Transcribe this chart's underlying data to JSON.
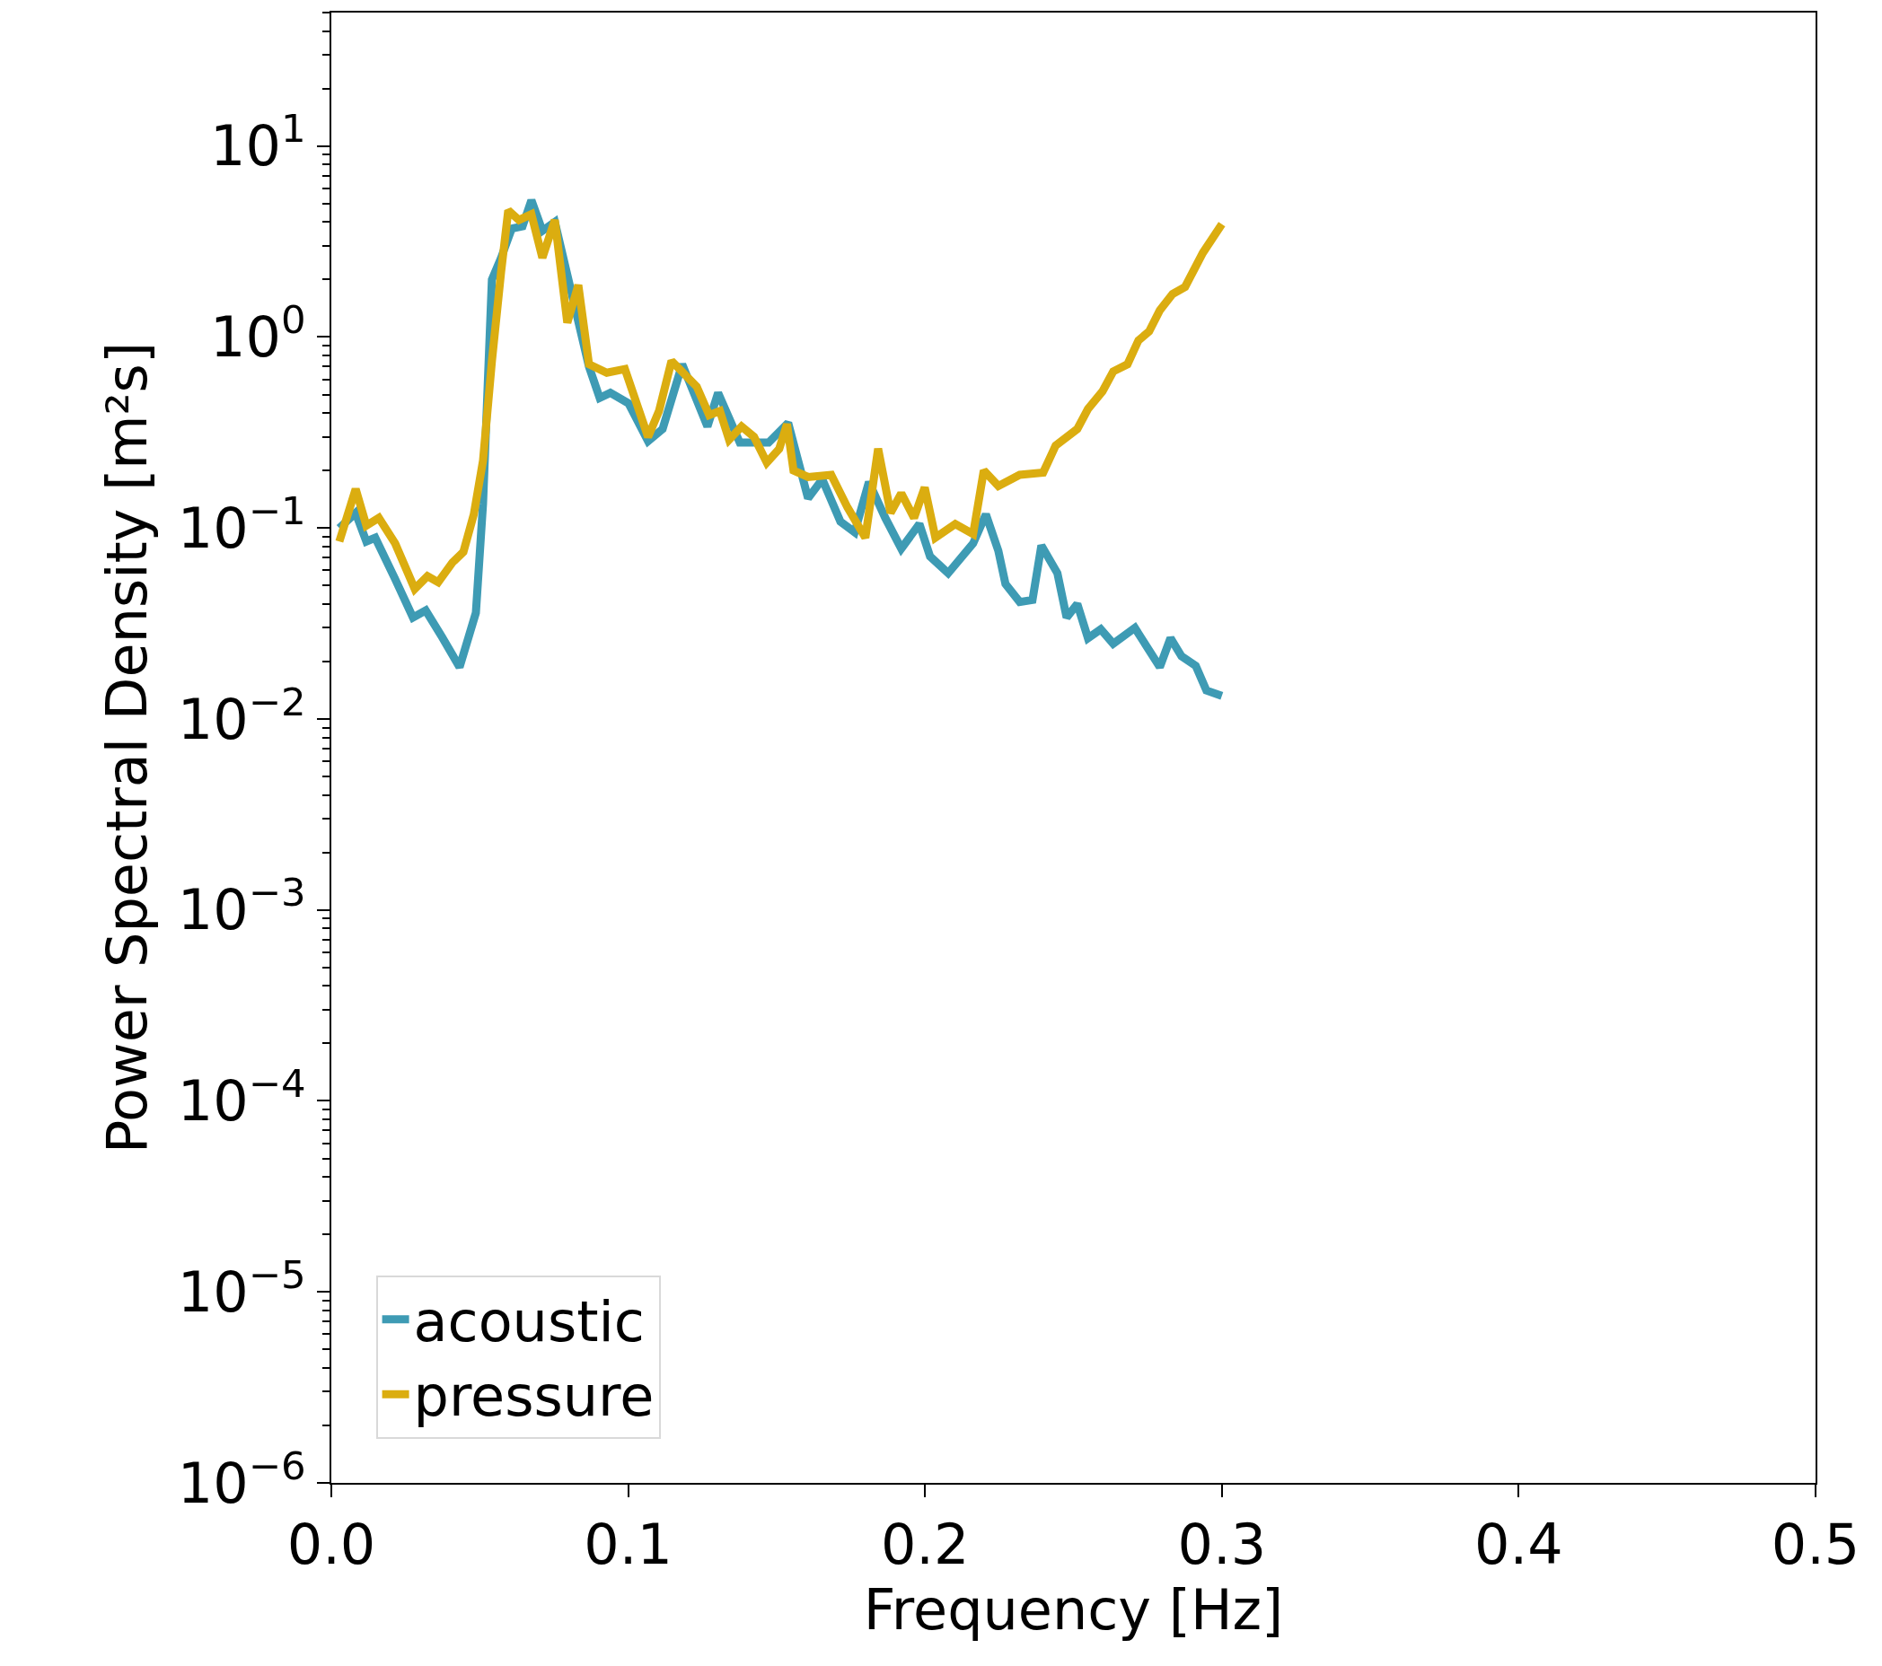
{
  "chart_data": {
    "type": "line",
    "xlabel": "Frequency [Hz]",
    "ylabel": "Power Spectral Density [m²s]",
    "log": "y",
    "legend": "bottom left",
    "line_style": "solid",
    "marker": "none",
    "xlim": [
      0,
      0.5
    ],
    "xticks": [
      {
        "value": 0,
        "label": "0.0"
      },
      0.1,
      0.2,
      0.3,
      0.4,
      0.5
    ],
    "ylim": [
      1e-06,
      50
    ],
    "yticks": [
      {
        "value": 1e-06,
        "label": "10$^{−6}$"
      },
      {
        "value": 1e-05,
        "label": "10$^{−5}$"
      },
      {
        "value": 0.0001,
        "label": "10$^{−4}$"
      },
      {
        "value": 0.001,
        "label": "10$^{−3}$"
      },
      {
        "value": 0.01,
        "label": "10$^{−2}$"
      },
      {
        "value": 0.1,
        "label": "10$^{−1}$"
      },
      {
        "value": 1,
        "label": "10$^{0}$"
      },
      {
        "value": 10,
        "label": "10$^{1}$"
      }
    ],
    "series": [
      {
        "name": "acoustic",
        "color": "#3e9bb4",
        "x": [
          0.0027,
          0.0082,
          0.0118,
          0.0148,
          0.0215,
          0.0275,
          0.0318,
          0.0372,
          0.0432,
          0.0487,
          0.0511,
          0.0541,
          0.0572,
          0.0608,
          0.0644,
          0.0674,
          0.0711,
          0.0753,
          0.0795,
          0.0832,
          0.0868,
          0.0904,
          0.094,
          0.1001,
          0.1067,
          0.1116,
          0.1182,
          0.1267,
          0.1303,
          0.1376,
          0.1473,
          0.1539,
          0.1606,
          0.1654,
          0.1715,
          0.1763,
          0.1811,
          0.1866,
          0.192,
          0.1981,
          0.2017,
          0.2078,
          0.2162,
          0.2205,
          0.2247,
          0.2271,
          0.2319,
          0.2362,
          0.2392,
          0.2446,
          0.2477,
          0.2513,
          0.2549,
          0.2592,
          0.2634,
          0.2707,
          0.2791,
          0.2827,
          0.2864,
          0.2912,
          0.2948,
          0.3
        ],
        "values": [
          0.1,
          0.12,
          0.085,
          0.089,
          0.054,
          0.034,
          0.037,
          0.027,
          0.0187,
          0.036,
          0.134,
          2.0,
          2.6,
          3.7,
          3.8,
          5.2,
          3.6,
          4.0,
          null,
          null,
          0.7,
          0.48,
          0.51,
          0.45,
          0.285,
          0.33,
          0.72,
          0.34,
          0.51,
          0.28,
          0.28,
          0.355,
          0.143,
          0.18,
          0.108,
          0.095,
          0.174,
          0.113,
          0.078,
          0.105,
          0.071,
          0.058,
          0.083,
          0.118,
          0.076,
          0.051,
          0.041,
          0.042,
          0.081,
          0.058,
          0.034,
          0.04,
          0.0265,
          0.0295,
          0.0248,
          0.03,
          0.0187,
          0.0265,
          0.0213,
          0.019,
          0.0141,
          0.0132
        ]
      },
      {
        "name": "pressure",
        "color": "#dbad10",
        "x": [
          0.0027,
          0.0082,
          0.0118,
          0.016,
          0.0215,
          0.0281,
          0.0324,
          0.036,
          0.0408,
          0.0445,
          0.048,
          0.0511,
          0.0541,
          0.0572,
          0.0596,
          0.0632,
          0.0674,
          0.0711,
          0.0753,
          0.0795,
          0.0832,
          0.0868,
          0.0928,
          0.0989,
          0.1067,
          0.1104,
          0.1146,
          0.1231,
          0.1273,
          0.1309,
          0.134,
          0.1382,
          0.1424,
          0.1467,
          0.1509,
          0.1535,
          0.1557,
          0.1606,
          0.1684,
          0.1739,
          0.1799,
          0.1842,
          0.1884,
          0.192,
          0.1963,
          0.1999,
          0.2035,
          0.2102,
          0.2162,
          0.2198,
          0.2247,
          0.2319,
          0.2398,
          0.244,
          0.2513,
          0.2549,
          0.2598,
          0.2634,
          0.2682,
          0.2719,
          0.2755,
          0.2791,
          0.2834,
          0.2876,
          0.2936,
          0.3
        ],
        "values": [
          0.085,
          0.16,
          0.103,
          0.113,
          0.083,
          0.048,
          0.056,
          0.052,
          0.066,
          0.075,
          0.118,
          0.225,
          0.75,
          2.2,
          4.6,
          4.1,
          4.4,
          2.6,
          4.1,
          1.19,
          1.87,
          0.72,
          0.65,
          0.68,
          0.3,
          0.41,
          0.75,
          0.55,
          0.39,
          0.41,
          0.29,
          0.34,
          0.3,
          0.22,
          0.26,
          0.35,
          0.2,
          0.185,
          0.19,
          0.128,
          0.089,
          0.26,
          0.12,
          0.152,
          0.113,
          0.163,
          0.089,
          0.105,
          0.093,
          0.2,
          0.166,
          0.19,
          0.195,
          0.27,
          0.33,
          0.42,
          0.52,
          0.66,
          0.72,
          0.96,
          1.07,
          1.38,
          1.68,
          1.83,
          2.76,
          3.9
        ]
      }
    ]
  }
}
